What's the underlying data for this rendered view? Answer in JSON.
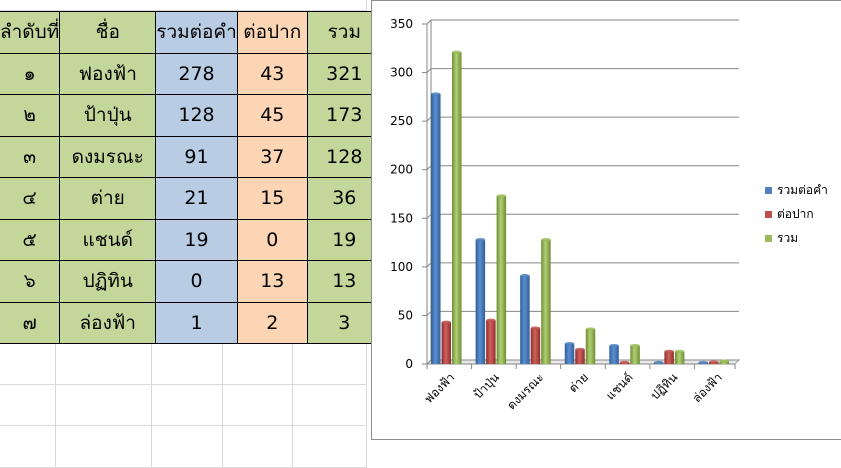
{
  "table": {
    "headers": [
      "ลำดับที่",
      "ชื่อ",
      "รวมต่อคำ",
      "ต่อปาก",
      "รวม"
    ],
    "rows": [
      {
        "rank": "๑",
        "name": "ฟองฟ้า",
        "word": "278",
        "mouth": "43",
        "total": "321"
      },
      {
        "rank": "๒",
        "name": "ป้าปุ่น",
        "word": "128",
        "mouth": "45",
        "total": "173"
      },
      {
        "rank": "๓",
        "name": "ดงมรณะ",
        "word": "91",
        "mouth": "37",
        "total": "128"
      },
      {
        "rank": "๔",
        "name": "ต่าย",
        "word": "21",
        "mouth": "15",
        "total": "36"
      },
      {
        "rank": "๕",
        "name": "แชนด์",
        "word": "19",
        "mouth": "0",
        "total": "19"
      },
      {
        "rank": "๖",
        "name": "ปฏิทิน",
        "word": "0",
        "mouth": "13",
        "total": "13"
      },
      {
        "rank": "๗",
        "name": "ล่องฟ้า",
        "word": "1",
        "mouth": "2",
        "total": "3"
      }
    ]
  },
  "chart_data": {
    "type": "bar",
    "title": "",
    "xlabel": "",
    "ylabel": "",
    "categories": [
      "ฟองฟ้า",
      "ป้าปุ่น",
      "ดงมรณะ",
      "ต่าย",
      "แชนด์",
      "ปฏิทิน",
      "ล่องฟ้า"
    ],
    "series": [
      {
        "name": "รวมต่อคำ",
        "values": [
          278,
          128,
          91,
          21,
          19,
          0,
          1
        ],
        "color": "#4f81bd"
      },
      {
        "name": "ต่อปาก",
        "values": [
          43,
          45,
          37,
          15,
          0,
          13,
          2
        ],
        "color": "#c0504d"
      },
      {
        "name": "รวม",
        "values": [
          321,
          173,
          128,
          36,
          19,
          13,
          3
        ],
        "color": "#9bbb59"
      }
    ],
    "ylim": [
      0,
      350
    ],
    "yticks": [
      "0",
      "50",
      "100",
      "150",
      "200",
      "250",
      "300",
      "350"
    ],
    "grid": true,
    "legend": "right",
    "style": "3d-clustered-column"
  }
}
